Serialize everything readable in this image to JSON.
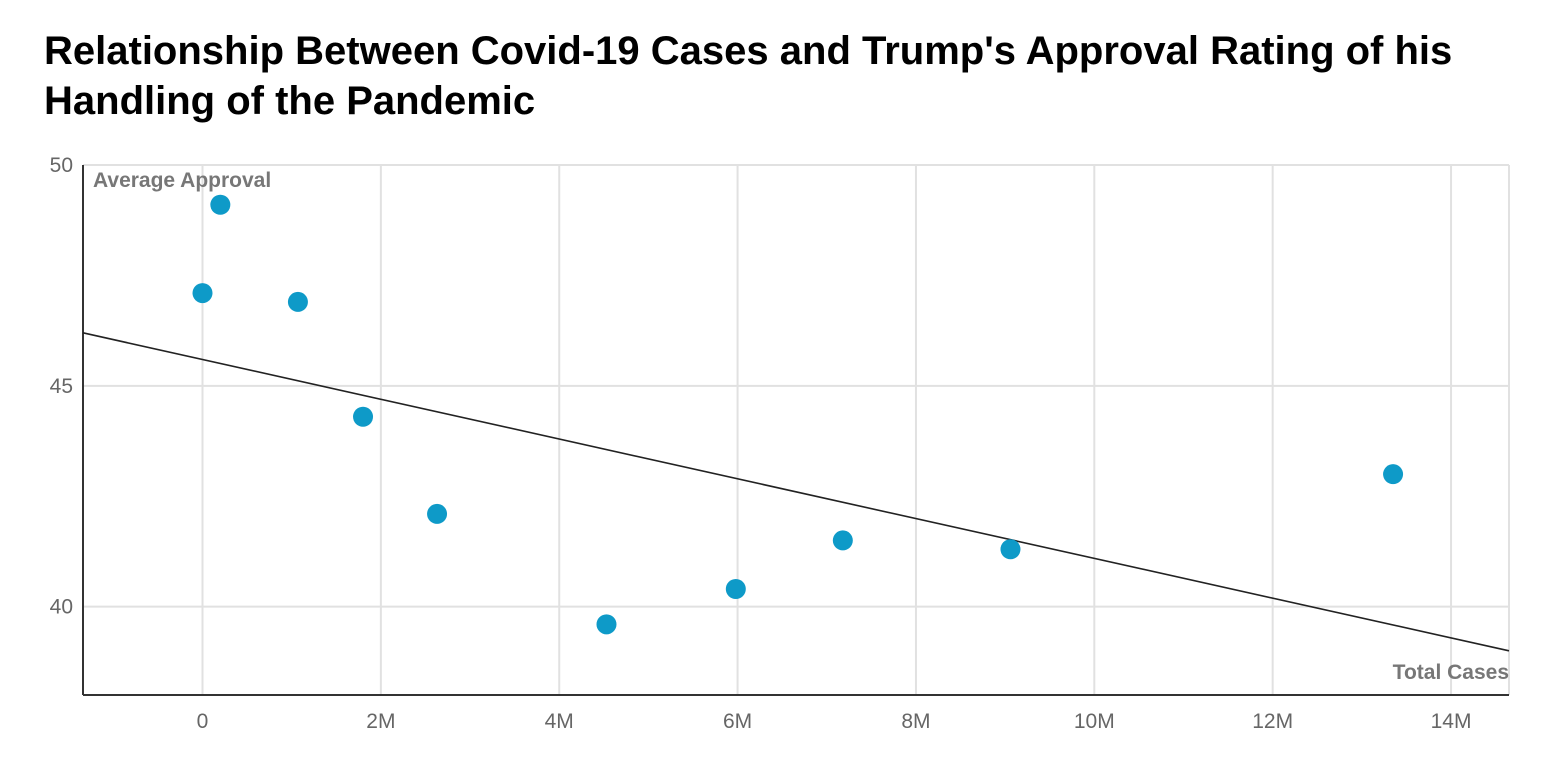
{
  "chart_data": {
    "type": "scatter",
    "title": "Relationship Between Covid-19 Cases and Trump's Approval Rating of his Handling of the Pandemic",
    "xlabel": "Total Cases",
    "ylabel": "Average Approval",
    "xlim": [
      -1340000,
      14650000
    ],
    "ylim": [
      38,
      50
    ],
    "x_ticks": [
      0,
      2000000,
      4000000,
      6000000,
      8000000,
      10000000,
      12000000,
      14000000
    ],
    "x_tick_labels": [
      "0",
      "2M",
      "4M",
      "6M",
      "8M",
      "10M",
      "12M",
      "14M"
    ],
    "y_ticks": [
      40,
      45,
      50
    ],
    "y_tick_labels": [
      "40",
      "45",
      "50"
    ],
    "grid": true,
    "point_color": "#0e9ac8",
    "series": [
      {
        "points": [
          {
            "x": 0,
            "y": 47.1
          },
          {
            "x": 200000,
            "y": 49.1
          },
          {
            "x": 1070000,
            "y": 46.9
          },
          {
            "x": 1800000,
            "y": 44.3
          },
          {
            "x": 2630000,
            "y": 42.1
          },
          {
            "x": 4530000,
            "y": 39.6
          },
          {
            "x": 5980000,
            "y": 40.4
          },
          {
            "x": 7180000,
            "y": 41.5
          },
          {
            "x": 9060000,
            "y": 41.3
          },
          {
            "x": 13350000,
            "y": 43.0
          }
        ]
      }
    ],
    "trendline": {
      "color": "#222222",
      "start": {
        "x": -1340000,
        "y": 46.2
      },
      "end": {
        "x": 14650000,
        "y": 39.0
      }
    }
  }
}
